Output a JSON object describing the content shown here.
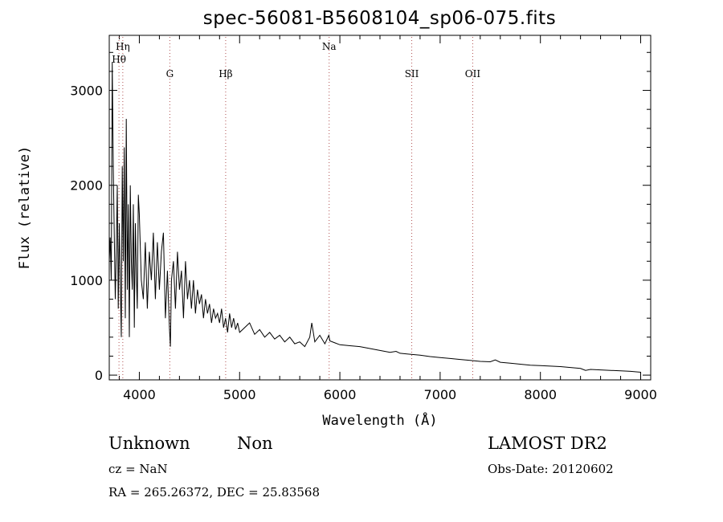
{
  "chart_data": {
    "type": "line",
    "title": "spec-56081-B5608104_sp06-075.fits",
    "xlabel": "Wavelength (Å)",
    "ylabel": "Flux (relative)",
    "xlim": [
      3700,
      9100
    ],
    "ylim": [
      -50,
      3580
    ],
    "xticks": [
      4000,
      5000,
      6000,
      7000,
      8000,
      9000
    ],
    "yticks": [
      0,
      1000,
      2000,
      3000
    ],
    "grid": false,
    "legend": "none",
    "series": [
      {
        "values_note": "",
        "x": [
          3700,
          3710,
          3720,
          3730,
          3740,
          3750,
          3760,
          3770,
          3780,
          3790,
          3800,
          3810,
          3820,
          3830,
          3840,
          3850,
          3860,
          3870,
          3880,
          3890,
          3900,
          3910,
          3920,
          3930,
          3940,
          3950,
          3960,
          3970,
          3980,
          3990,
          4000,
          4020,
          4040,
          4060,
          4080,
          4100,
          4120,
          4140,
          4160,
          4180,
          4200,
          4220,
          4240,
          4260,
          4280,
          4300,
          4310,
          4320,
          4340,
          4360,
          4380,
          4400,
          4420,
          4440,
          4460,
          4480,
          4500,
          4520,
          4540,
          4560,
          4580,
          4600,
          4620,
          4640,
          4660,
          4680,
          4700,
          4720,
          4740,
          4760,
          4780,
          4800,
          4820,
          4840,
          4860,
          4880,
          4900,
          4920,
          4940,
          4960,
          4980,
          5000,
          5050,
          5100,
          5150,
          5200,
          5250,
          5300,
          5350,
          5400,
          5450,
          5500,
          5550,
          5600,
          5650,
          5700,
          5720,
          5750,
          5800,
          5850,
          5890,
          5900,
          5950,
          6000,
          6100,
          6200,
          6300,
          6400,
          6500,
          6560,
          6600,
          6700,
          6800,
          6900,
          7000,
          7100,
          7200,
          7300,
          7400,
          7500,
          7550,
          7600,
          7700,
          7800,
          7900,
          8000,
          8100,
          8200,
          8300,
          8400,
          8450,
          8500,
          8600,
          8700,
          8800,
          8900,
          9000
        ],
        "y": [
          1200,
          1450,
          1000,
          3300,
          2200,
          1500,
          800,
          1300,
          2000,
          700,
          1600,
          1000,
          400,
          2200,
          1200,
          2400,
          600,
          2700,
          900,
          1800,
          400,
          2000,
          1200,
          900,
          1800,
          500,
          1600,
          1100,
          700,
          1900,
          1700,
          1000,
          800,
          1400,
          700,
          1300,
          1000,
          1500,
          800,
          1400,
          900,
          1300,
          1500,
          600,
          1100,
          500,
          300,
          1000,
          1200,
          700,
          1300,
          900,
          1100,
          600,
          1200,
          800,
          1000,
          700,
          1000,
          650,
          900,
          750,
          850,
          600,
          800,
          650,
          750,
          550,
          700,
          600,
          650,
          550,
          700,
          500,
          600,
          450,
          650,
          500,
          600,
          480,
          550,
          450,
          500,
          550,
          430,
          480,
          400,
          450,
          380,
          420,
          350,
          400,
          330,
          350,
          300,
          400,
          550,
          350,
          420,
          330,
          420,
          360,
          340,
          320,
          310,
          300,
          280,
          260,
          240,
          250,
          230,
          220,
          210,
          195,
          185,
          175,
          165,
          155,
          145,
          140,
          160,
          135,
          125,
          115,
          105,
          100,
          95,
          90,
          80,
          70,
          50,
          60,
          55,
          50,
          45,
          40,
          30
        ]
      }
    ],
    "lines": [
      {
        "label": "Hη",
        "x": 3835
      },
      {
        "label": "Hθ",
        "x": 3797
      },
      {
        "label": "G",
        "x": 4304
      },
      {
        "label": "Hβ",
        "x": 4861
      },
      {
        "label": "Na",
        "x": 5893
      },
      {
        "label": "SII",
        "x": 6717
      },
      {
        "label": "OII",
        "x": 7325
      }
    ]
  },
  "info": {
    "class": "Unknown",
    "subclass": "Non",
    "cz": "cz = NaN",
    "radec": "RA = 265.26372, DEC =  25.83568",
    "survey": "LAMOST DR2",
    "obsdate": "Obs-Date: 20120602"
  }
}
